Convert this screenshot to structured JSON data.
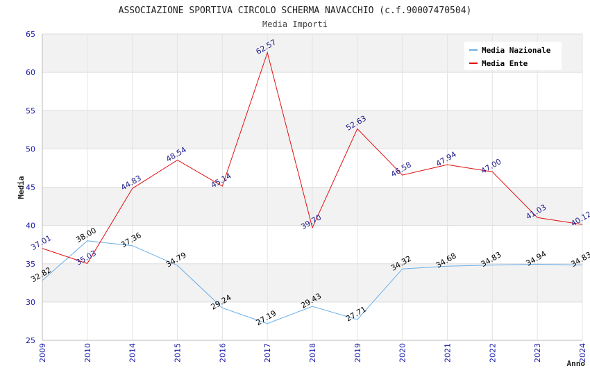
{
  "chart_data": {
    "type": "line",
    "title": "ASSOCIAZIONE SPORTIVA CIRCOLO SCHERMA NAVACCHIO (c.f.90007470504)",
    "subtitle": "Media Importi",
    "xlabel": "Anno",
    "ylabel": "Media",
    "ylim": [
      25,
      65
    ],
    "yticks": [
      25,
      30,
      35,
      40,
      45,
      50,
      55,
      60,
      65
    ],
    "categories": [
      "2009",
      "2010",
      "2014",
      "2015",
      "2016",
      "2017",
      "2018",
      "2019",
      "2020",
      "2021",
      "2022",
      "2023",
      "2024"
    ],
    "series": [
      {
        "name": "Media Nazionale",
        "color": "#6aaee8",
        "label_color": "#000000",
        "values": [
          32.82,
          38.0,
          37.36,
          34.79,
          29.24,
          27.19,
          29.43,
          27.71,
          34.32,
          34.68,
          34.83,
          34.94,
          34.83
        ],
        "labels": [
          "32.82",
          "38.00",
          "37.36",
          "34.79",
          "29.24",
          "27.19",
          "29.43",
          "27.71",
          "34.32",
          "34.68",
          "34.83",
          "34.94",
          "34.83"
        ]
      },
      {
        "name": "Media Ente",
        "color": "#e01010",
        "label_color": "#1a1a8c",
        "values": [
          37.01,
          35.03,
          44.83,
          48.54,
          45.14,
          62.57,
          39.7,
          52.63,
          46.58,
          47.94,
          47.0,
          41.03,
          40.12
        ],
        "labels": [
          "37.01",
          "35.03",
          "44.83",
          "48.54",
          "45.14",
          "62.57",
          "39.70",
          "52.63",
          "46.58",
          "47.94",
          "47.00",
          "41.03",
          "40.12"
        ]
      }
    ],
    "grid": true,
    "legend": "top-right"
  }
}
